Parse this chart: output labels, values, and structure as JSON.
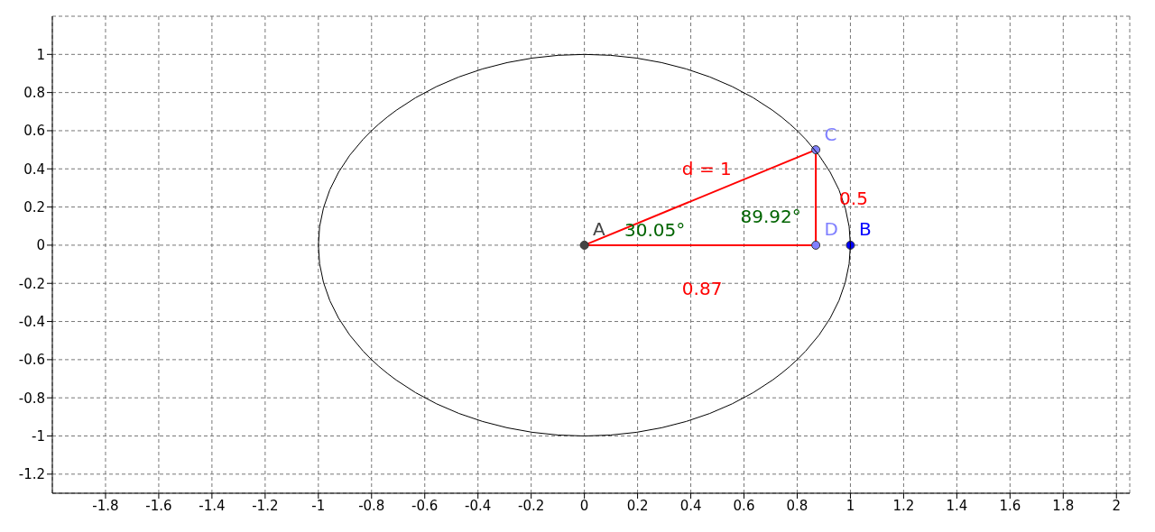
{
  "chart_data": {
    "type": "line",
    "xlim": [
      -2,
      2.05
    ],
    "ylim": [
      -1.3,
      1.2
    ],
    "xticks": [
      -1.8,
      -1.6,
      -1.4,
      -1.2,
      -1,
      -0.8,
      -0.6,
      -0.4,
      -0.2,
      0,
      0.2,
      0.4,
      0.6,
      0.8,
      1,
      1.2,
      1.4,
      1.6,
      1.8,
      2
    ],
    "yticks": [
      -1.2,
      -1,
      -0.8,
      -0.6,
      -0.4,
      -0.2,
      0,
      0.2,
      0.4,
      0.6,
      0.8,
      1
    ],
    "grid": true,
    "line_style": "solid",
    "series": [
      {
        "name": "d = 1",
        "color": "#ff0000",
        "x": [
          0,
          0.87
        ],
        "values": [
          0,
          0.5
        ]
      },
      {
        "name": "0.5",
        "color": "#ff0000",
        "x": [
          0.87,
          0.87
        ],
        "values": [
          0.5,
          0
        ]
      },
      {
        "name": "0.87",
        "color": "#ff0000",
        "x": [
          0.87,
          0
        ],
        "values": [
          0,
          0
        ]
      },
      {
        "type": "scatter",
        "name": "A",
        "color": "#444444",
        "x": [
          0
        ],
        "values": [
          0
        ]
      },
      {
        "type": "scatter",
        "name": "B",
        "color": "#0000ff",
        "x": [
          1
        ],
        "values": [
          0
        ]
      },
      {
        "type": "scatter",
        "name": "C",
        "color": "#8080ff",
        "x": [
          0.87
        ],
        "values": [
          0.5
        ]
      },
      {
        "type": "scatter",
        "name": "D",
        "color": "#8080ff",
        "x": [
          0.87
        ],
        "values": [
          0
        ]
      }
    ],
    "annotations": [
      "30.05°",
      "89.92°"
    ]
  }
}
